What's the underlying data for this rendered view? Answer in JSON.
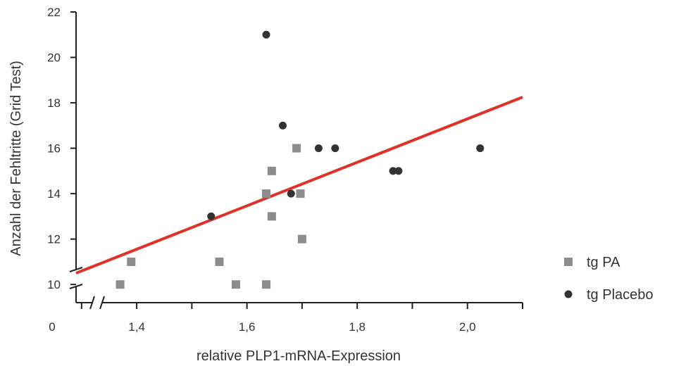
{
  "chart_data": {
    "type": "scatter",
    "title": "",
    "xlabel": "relative PLP1-mRNA-Expression",
    "ylabel": "Anzahl der Fehltritte (Grid Test)",
    "x_ticks": [
      {
        "value": 1.4,
        "label": "1,4"
      },
      {
        "value": 1.6,
        "label": "1,6"
      },
      {
        "value": 1.8,
        "label": "1,8"
      },
      {
        "value": 2.0,
        "label": "2,0"
      }
    ],
    "x_origin_label": "0",
    "y_ticks": [
      {
        "value": 10,
        "label": "10"
      },
      {
        "value": 12,
        "label": "12"
      },
      {
        "value": 14,
        "label": "14"
      },
      {
        "value": 16,
        "label": "16"
      },
      {
        "value": 18,
        "label": "18"
      },
      {
        "value": 20,
        "label": "20"
      },
      {
        "value": 22,
        "label": "22"
      }
    ],
    "xlim": [
      1.29,
      2.1
    ],
    "ylim": [
      9.2,
      22
    ],
    "axis_breaks": true,
    "grid": false,
    "legend_position": "right",
    "series": [
      {
        "name": "tg PA",
        "marker": "square",
        "color": "#8c8c8c",
        "points": [
          {
            "x": 1.37,
            "y": 10
          },
          {
            "x": 1.39,
            "y": 11
          },
          {
            "x": 1.55,
            "y": 11
          },
          {
            "x": 1.58,
            "y": 10
          },
          {
            "x": 1.635,
            "y": 10
          },
          {
            "x": 1.635,
            "y": 14
          },
          {
            "x": 1.645,
            "y": 15
          },
          {
            "x": 1.645,
            "y": 13
          },
          {
            "x": 1.69,
            "y": 16
          },
          {
            "x": 1.697,
            "y": 14
          },
          {
            "x": 1.7,
            "y": 12
          }
        ]
      },
      {
        "name": "tg Placebo",
        "marker": "circle",
        "color": "#333333",
        "points": [
          {
            "x": 1.535,
            "y": 13
          },
          {
            "x": 1.635,
            "y": 21
          },
          {
            "x": 1.665,
            "y": 17
          },
          {
            "x": 1.68,
            "y": 14
          },
          {
            "x": 1.73,
            "y": 16
          },
          {
            "x": 1.76,
            "y": 16
          },
          {
            "x": 1.865,
            "y": 15
          },
          {
            "x": 1.875,
            "y": 15
          },
          {
            "x": 2.023,
            "y": 16
          }
        ]
      }
    ],
    "regression_line": {
      "color": "#e03128",
      "x": [
        1.29,
        2.1
      ],
      "y": [
        10.5,
        18.25
      ]
    }
  }
}
